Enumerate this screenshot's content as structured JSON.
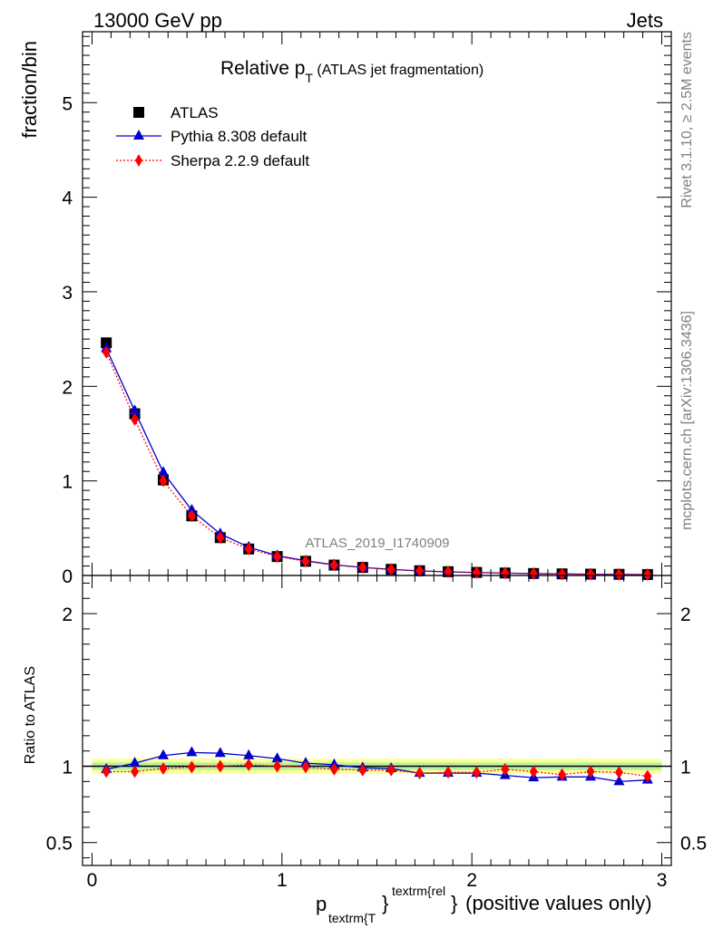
{
  "header": {
    "left_label": "13000 GeV pp",
    "right_label": "Jets"
  },
  "side_labels": {
    "rivet": "Rivet 3.1.10, ≥ 2.5M events",
    "mcplots": "mcplots.cern.ch [arXiv:1306.3436]"
  },
  "chart_data": {
    "type": "line",
    "title_main": "Relative p",
    "title_sub": "T",
    "title_rest": " (ATLAS jet fragmentation)",
    "analysis_label": "ATLAS_2019_I1740909",
    "ylabel": "fraction/bin",
    "ratio_ylabel": "Ratio to ATLAS",
    "xlabel": {
      "p": "p",
      "sub": "textrm{T",
      "sup": "textrm{rel",
      "brace_close": "}",
      "brace_close2": "}",
      "rest": " (positive values only)"
    },
    "xlim": [
      -0.05,
      3.05
    ],
    "ylim": [
      0,
      5.75
    ],
    "ratio_ylim": [
      0.35,
      2.25
    ],
    "x_ticks": [
      0,
      1,
      2,
      3
    ],
    "x_tick_labels": [
      "0",
      "1",
      "2",
      "3"
    ],
    "y_ticks": [
      0,
      1,
      2,
      3,
      4,
      5
    ],
    "y_tick_labels": [
      "0",
      "1",
      "2",
      "3",
      "4",
      "5"
    ],
    "ratio_ticks": [
      0.5,
      1,
      2
    ],
    "ratio_tick_labels": [
      "0.5",
      "1",
      "2"
    ],
    "x": [
      0.075,
      0.225,
      0.375,
      0.525,
      0.675,
      0.825,
      0.975,
      1.125,
      1.275,
      1.425,
      1.575,
      1.725,
      1.875,
      2.025,
      2.175,
      2.325,
      2.475,
      2.625,
      2.775,
      2.925
    ],
    "series": [
      {
        "name": "ATLAS",
        "marker": "square",
        "color": "#000000",
        "values": [
          2.46,
          1.71,
          1.01,
          0.63,
          0.4,
          0.28,
          0.2,
          0.15,
          0.11,
          0.085,
          0.065,
          0.05,
          0.04,
          0.032,
          0.026,
          0.021,
          0.017,
          0.014,
          0.012,
          0.01
        ]
      },
      {
        "name": "Pythia 8.308 default",
        "marker": "triangle",
        "color": "#0000cc",
        "values": [
          2.4,
          1.74,
          1.09,
          0.69,
          0.44,
          0.3,
          0.21,
          0.155,
          0.112,
          0.085,
          0.064,
          0.048,
          0.038,
          0.031,
          0.025,
          0.02,
          0.016,
          0.013,
          0.011,
          0.009
        ],
        "ratio": [
          0.98,
          1.02,
          1.07,
          1.09,
          1.085,
          1.07,
          1.05,
          1.02,
          1.01,
          0.99,
          0.985,
          0.955,
          0.955,
          0.955,
          0.94,
          0.925,
          0.93,
          0.93,
          0.9,
          0.91
        ]
      },
      {
        "name": "Sherpa 2.2.9 default",
        "marker": "diamond",
        "color": "#ff0000",
        "values": [
          2.36,
          1.65,
          1.0,
          0.63,
          0.4,
          0.28,
          0.2,
          0.15,
          0.11,
          0.085,
          0.064,
          0.05,
          0.039,
          0.031,
          0.026,
          0.02,
          0.016,
          0.014,
          0.012,
          0.009
        ],
        "ratio": [
          0.965,
          0.965,
          0.985,
          0.995,
          1.0,
          1.01,
          1.0,
          0.995,
          0.98,
          0.975,
          0.975,
          0.955,
          0.96,
          0.96,
          0.98,
          0.965,
          0.945,
          0.965,
          0.96,
          0.935
        ]
      }
    ],
    "band_inner": 0.025,
    "band_outer": 0.05,
    "colors": {
      "band_inner": "#b7f2a2",
      "band_outer": "#ffff99",
      "axes": "#000000",
      "gray_text": "#808080"
    }
  }
}
